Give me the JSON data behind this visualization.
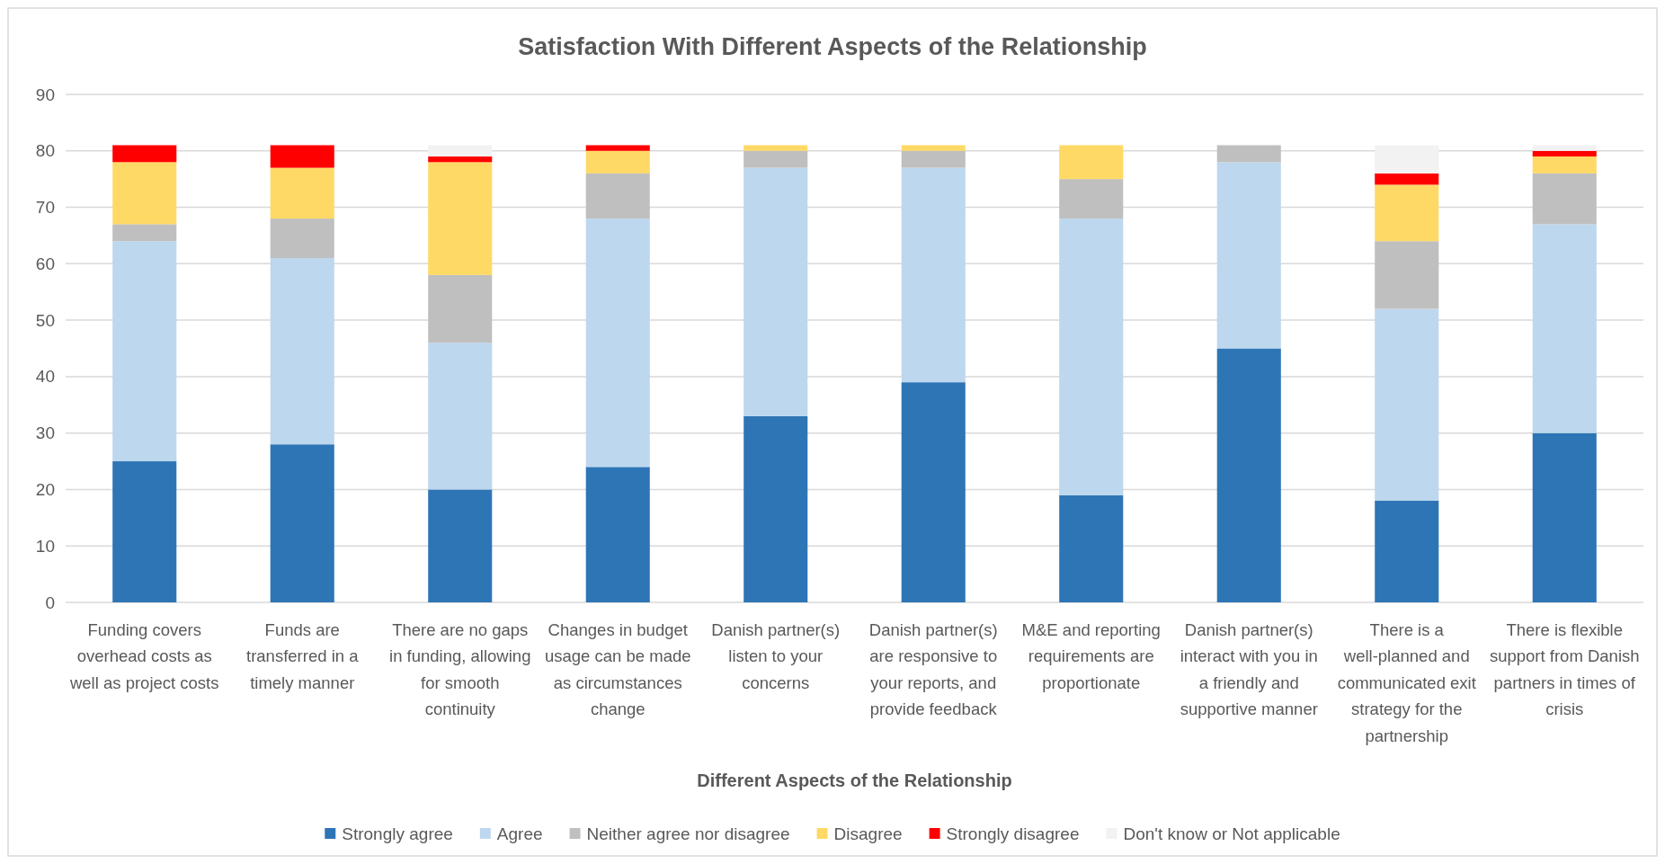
{
  "chart_data": {
    "type": "bar",
    "title": "Satisfaction With Different Aspects of the Relationship",
    "xlabel": "Different Aspects of the Relationship",
    "categories": [
      "Funding covers overhead costs as well as project costs",
      "Funds are transferred in a timely manner",
      "There are no gaps in funding, allowing for smooth continuity",
      "Changes in budget usage can be made as circumstances change",
      "Danish partner(s) listen to your concerns",
      "Danish partner(s) are responsive to your reports, and provide feedback",
      "M&E and reporting requirements are proportionate",
      "Danish partner(s) interact with you in a friendly and supportive manner",
      "There is a well-planned and communicated exit strategy for the partnership",
      "There is flexible support from Danish partners in times of crisis"
    ],
    "series": [
      {
        "name": "Strongly agree",
        "color": "#2e75b6",
        "values": [
          25,
          28,
          20,
          24,
          33,
          39,
          19,
          45,
          18,
          30
        ]
      },
      {
        "name": "Agree",
        "color": "#bdd7ee",
        "values": [
          39,
          33,
          26,
          44,
          44,
          38,
          49,
          33,
          34,
          37
        ]
      },
      {
        "name": "Neither agree nor disagree",
        "color": "#bfbfbf",
        "values": [
          3,
          7,
          12,
          8,
          3,
          3,
          7,
          3,
          12,
          9
        ]
      },
      {
        "name": "Disagree",
        "color": "#ffd966",
        "values": [
          11,
          9,
          20,
          4,
          1,
          1,
          6,
          0,
          10,
          3
        ]
      },
      {
        "name": "Strongly disagree",
        "color": "#ff0000",
        "values": [
          3,
          4,
          1,
          1,
          0,
          0,
          0,
          0,
          2,
          1
        ]
      },
      {
        "name": "Don't know or Not applicable",
        "color": "#f2f2f2",
        "values": [
          0,
          0,
          2,
          0,
          0,
          0,
          0,
          0,
          5,
          1
        ]
      }
    ],
    "stacked": true,
    "ylim": [
      0,
      90
    ],
    "yticks": [
      0,
      10,
      20,
      30,
      40,
      50,
      60,
      70,
      80,
      90
    ],
    "grid": "y",
    "legend": "bottom"
  }
}
